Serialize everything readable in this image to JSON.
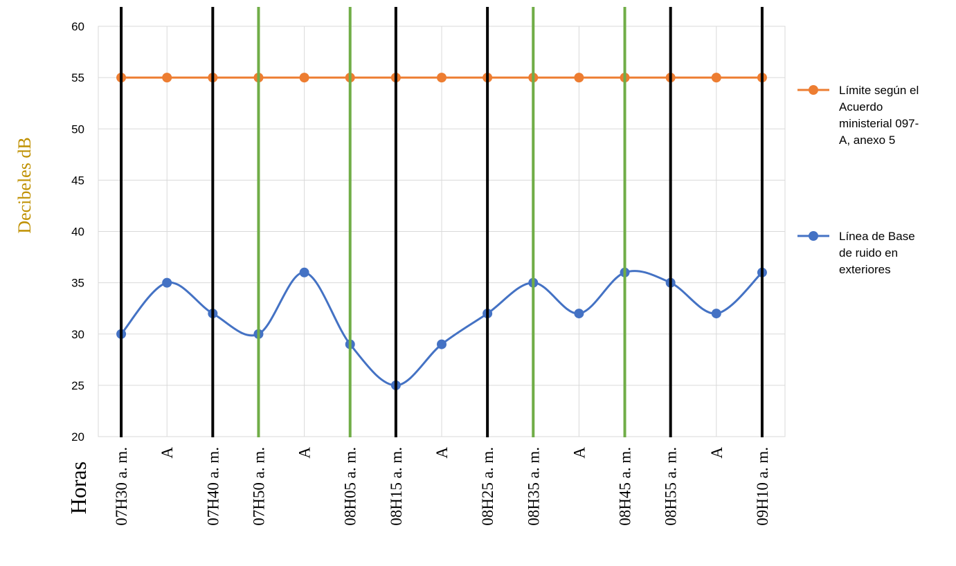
{
  "chart_data": {
    "type": "line",
    "title": "",
    "xlabel": "Horas",
    "ylabel": "Decibeles dB",
    "ylim": [
      20,
      60
    ],
    "y_ticks": [
      20,
      25,
      30,
      35,
      40,
      45,
      50,
      55,
      60
    ],
    "grid": true,
    "legend_position": "right",
    "categories": [
      "07H30 a. m.",
      "A",
      "07H40 a. m.",
      "07H50 a. m.",
      "A",
      "08H05 a. m.",
      "08H15 a. m.",
      "A",
      "08H25 a. m.",
      "08H35 a. m.",
      "A",
      "08H45 a. m.",
      "08H55 a. m.",
      "A",
      "09H10 a. m."
    ],
    "series": [
      {
        "name": "Límite según el Acuerdo ministerial 097-A, anexo 5",
        "legend_lines": [
          "Límite según el",
          "Acuerdo",
          "ministerial 097-",
          "A, anexo 5"
        ],
        "color": "#ED7D31",
        "smooth": false,
        "values": [
          55,
          55,
          55,
          55,
          55,
          55,
          55,
          55,
          55,
          55,
          55,
          55,
          55,
          55,
          55
        ]
      },
      {
        "name": "Línea de Base de ruido en exteriores",
        "legend_lines": [
          "Línea de Base",
          "de ruido en",
          "exteriores"
        ],
        "color": "#4472C4",
        "smooth": true,
        "values": [
          30,
          35,
          32,
          30,
          36,
          29,
          25,
          29,
          32,
          35,
          32,
          36,
          35,
          32,
          36
        ]
      }
    ],
    "vertical_markers": [
      {
        "category_index": 0,
        "color": "#000000"
      },
      {
        "category_index": 2,
        "color": "#000000"
      },
      {
        "category_index": 3,
        "color": "#70AD47"
      },
      {
        "category_index": 5,
        "color": "#70AD47"
      },
      {
        "category_index": 6,
        "color": "#000000"
      },
      {
        "category_index": 8,
        "color": "#000000"
      },
      {
        "category_index": 9,
        "color": "#70AD47"
      },
      {
        "category_index": 11,
        "color": "#70AD47"
      },
      {
        "category_index": 12,
        "color": "#000000"
      },
      {
        "category_index": 14,
        "color": "#000000"
      }
    ],
    "ylabel_color": "#BF9000"
  }
}
